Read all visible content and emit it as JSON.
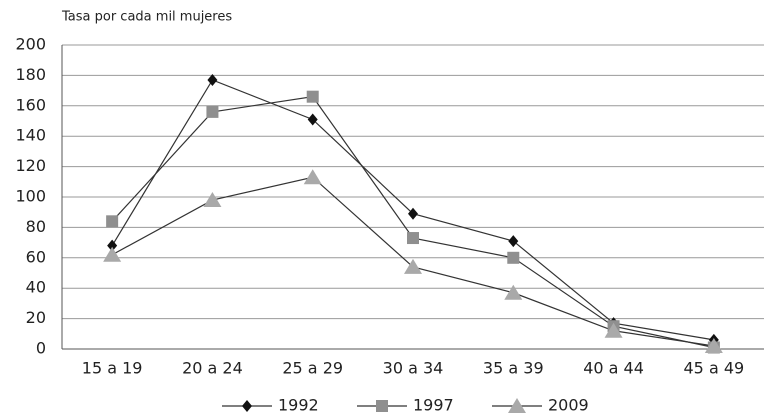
{
  "chart_data": {
    "type": "line",
    "y_axis_label": "Tasa por cada mil mujeres",
    "categories": [
      "15 a 19",
      "20 a 24",
      "25 a 29",
      "30 a 34",
      "35 a 39",
      "40 a 44",
      "45 a 49"
    ],
    "series": [
      {
        "name": "1992",
        "color": "#111111",
        "marker": "diamond",
        "values": [
          68,
          177,
          151,
          89,
          71,
          17,
          6
        ]
      },
      {
        "name": "1997",
        "color": "#8f8f8f",
        "marker": "square",
        "values": [
          84,
          156,
          166,
          73,
          60,
          15,
          1
        ]
      },
      {
        "name": "2009",
        "color": "#a9a9a9",
        "marker": "triangle",
        "values": [
          62,
          98,
          113,
          54,
          37,
          12,
          2
        ]
      }
    ],
    "line_color": "#333333",
    "ylim": [
      0,
      200
    ],
    "yticks": [
      0,
      20,
      40,
      60,
      80,
      100,
      120,
      140,
      160,
      180,
      200
    ],
    "grid": true,
    "legend": "bottom"
  }
}
